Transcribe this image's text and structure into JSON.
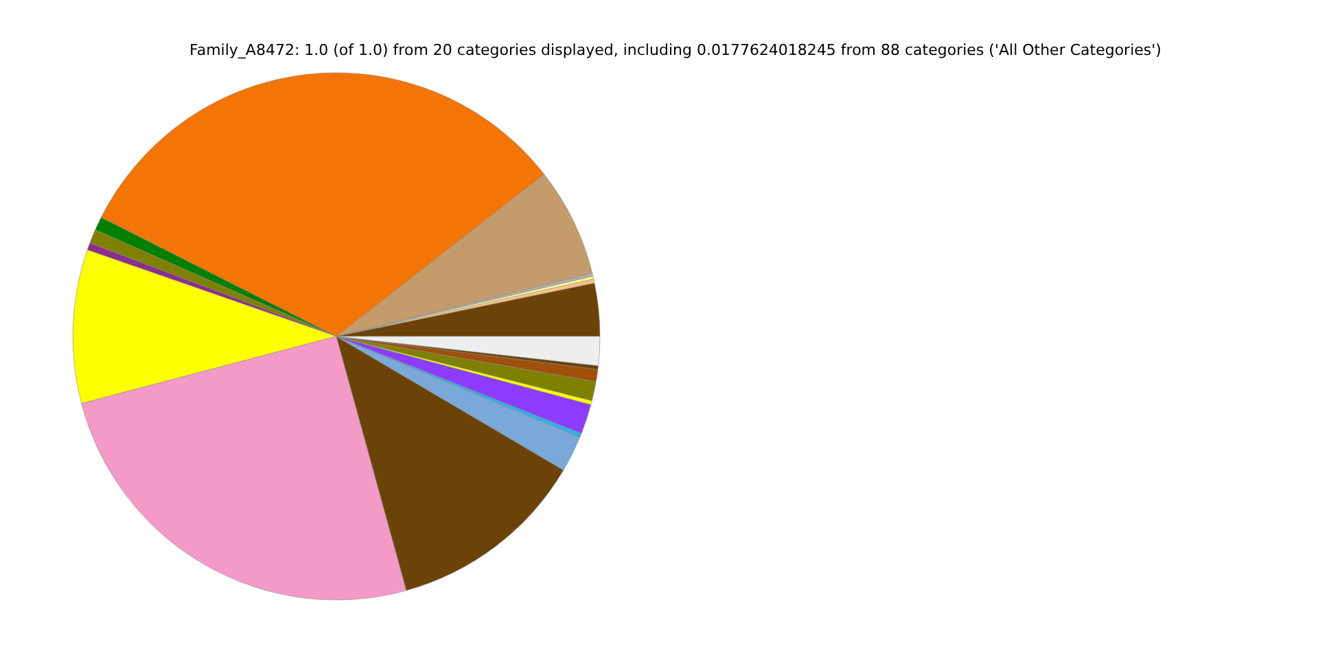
{
  "chart_data": {
    "type": "pie",
    "title": "Family_A8472: 1.0 (of 1.0) from 20 categories displayed, including 0.0177624018245 from 88 categories ('All Other Categories')",
    "categories": [
      null,
      null,
      null,
      null,
      null,
      null,
      null,
      null,
      null,
      null,
      null,
      null,
      null,
      null,
      null,
      null,
      null,
      null,
      null,
      null
    ],
    "values": [
      3.25,
      0.25,
      0.17,
      0.19,
      6.69,
      32.0,
      0.83,
      0.86,
      0.44,
      9.42,
      25.18,
      12.25,
      2.22,
      0.25,
      1.83,
      0.25,
      1.17,
      0.75,
      0.22,
      1.78
    ],
    "colors": [
      "#6b4309",
      "#fdc086",
      "#ffff99",
      "#b0b0b0",
      "#c49c6b",
      "#f37506",
      "#007f00",
      "#808000",
      "#8b2f8b",
      "#ffff00",
      "#f49ac6",
      "#6b4309",
      "#7aa8d8",
      "#2fb0e8",
      "#8c3cff",
      "#ffff00",
      "#808000",
      "#a0500a",
      "#6b4309",
      "#eeeeee"
    ],
    "legend": false
  }
}
